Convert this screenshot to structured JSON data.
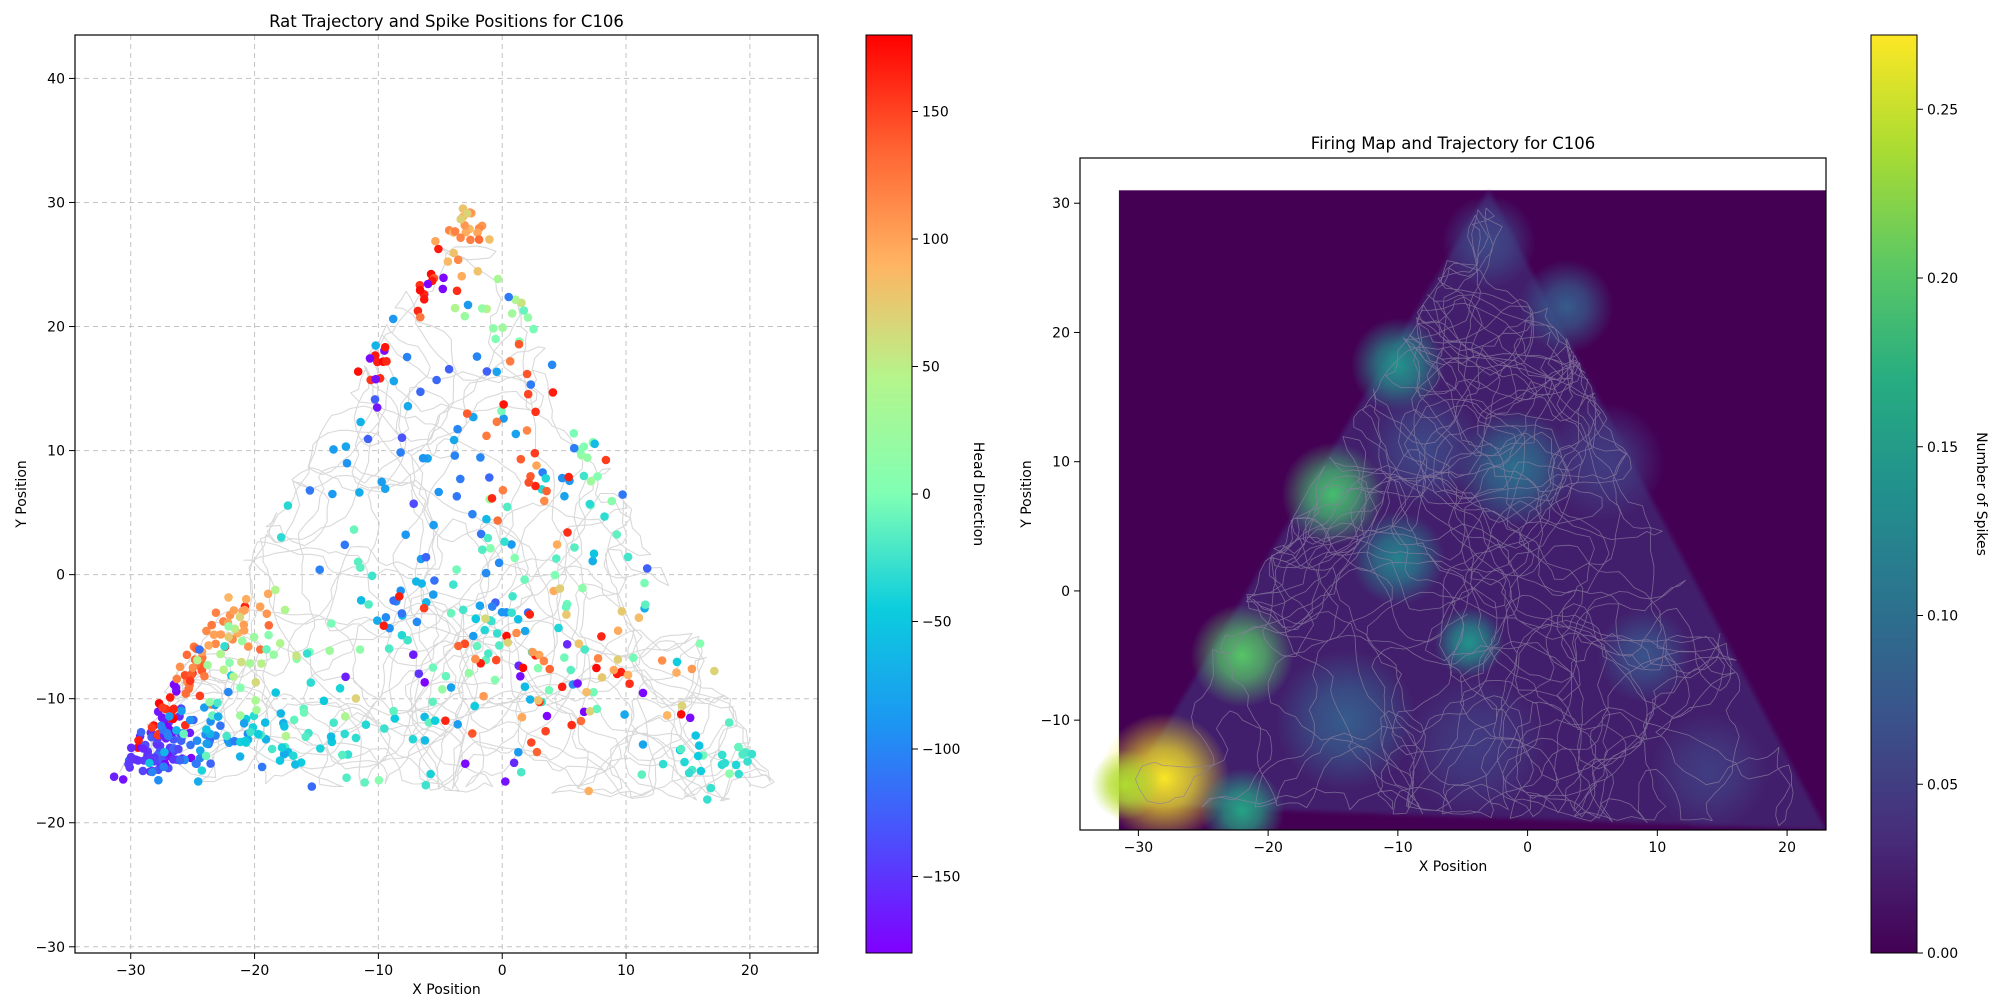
{
  "chart_data": [
    {
      "type": "scatter",
      "title": "Rat Trajectory and Spike Positions for  C106",
      "xlabel": "X Position",
      "ylabel": "Y Position",
      "xlim": [
        -34.5,
        25.5
      ],
      "ylim": [
        -30.5,
        43.5
      ],
      "xticks": [
        -30,
        -20,
        -10,
        0,
        10,
        20
      ],
      "yticks": [
        -30,
        -20,
        -10,
        0,
        10,
        20,
        30,
        40
      ],
      "grid": true,
      "trajectory_color": "#d9d9d9",
      "arena_vertices": [
        [
          -31.5,
          -16.5
        ],
        [
          -3,
          31
        ],
        [
          23,
          -18.5
        ]
      ],
      "spikes_color_by": "Head Direction",
      "spikes_colormap": "rainbow",
      "colorbar": {
        "label": "Head Direction",
        "range": [
          -180,
          180
        ],
        "ticks": [
          -150,
          -100,
          -50,
          0,
          50,
          100,
          150
        ]
      },
      "spike_clusters": [
        {
          "x": -28.5,
          "y": -14.5,
          "spread": [
            1.6,
            1.2
          ],
          "direction": -145,
          "count": 70
        },
        {
          "x": -27.5,
          "y": -11.5,
          "spread": [
            1.0,
            1.3
          ],
          "direction": 175,
          "count": 25
        },
        {
          "x": -25.5,
          "y": -7.5,
          "spread": [
            1.5,
            1.5
          ],
          "direction": 130,
          "count": 25
        },
        {
          "x": -22.5,
          "y": -3.5,
          "spread": [
            1.8,
            1.6
          ],
          "direction": 105,
          "count": 30
        },
        {
          "x": -24.5,
          "y": -13.5,
          "spread": [
            2.5,
            1.5
          ],
          "direction": -95,
          "count": 45
        },
        {
          "x": -20,
          "y": -12,
          "spread": [
            3.0,
            2.0
          ],
          "direction": -45,
          "count": 30
        },
        {
          "x": -20,
          "y": -7,
          "spread": [
            3.5,
            2.5
          ],
          "direction": 30,
          "count": 30
        },
        {
          "x": -3,
          "y": 27.5,
          "spread": [
            1.2,
            2.0
          ],
          "direction": 100,
          "count": 25
        },
        {
          "x": -6,
          "y": 23.5,
          "spread": [
            1.5,
            1.2
          ],
          "direction": 160,
          "count": 15
        },
        {
          "x": 0,
          "y": 21.5,
          "spread": [
            1.5,
            1.8
          ],
          "direction": 20,
          "count": 15
        },
        {
          "x": -10.5,
          "y": 17.5,
          "spread": [
            1.0,
            1.5
          ],
          "direction": 170,
          "count": 12
        },
        {
          "x": 7,
          "y": 10,
          "spread": [
            1.2,
            1.5
          ],
          "direction": 10,
          "count": 10
        },
        {
          "x": 18,
          "y": -15,
          "spread": [
            2.0,
            1.5
          ],
          "direction": -20,
          "count": 25
        },
        {
          "x": -5,
          "y": 6,
          "spread": [
            8.0,
            10.0
          ],
          "direction": -95,
          "count": 90
        },
        {
          "x": 0,
          "y": -4,
          "spread": [
            8.0,
            6.0
          ],
          "direction": -20,
          "count": 90
        },
        {
          "x": 3,
          "y": -8,
          "spread": [
            6.0,
            4.0
          ],
          "direction": 175,
          "count": 40
        },
        {
          "x": 8,
          "y": -8,
          "spread": [
            6.0,
            5.0
          ],
          "direction": 90,
          "count": 35
        },
        {
          "x": 2,
          "y": 10,
          "spread": [
            4.0,
            4.0
          ],
          "direction": 140,
          "count": 25
        },
        {
          "x": -12,
          "y": -14,
          "spread": [
            5.0,
            1.5
          ],
          "direction": -30,
          "count": 30
        }
      ]
    },
    {
      "type": "heatmap",
      "title": "Firing Map and Trajectory for  C106",
      "xlabel": "X Position",
      "ylabel": "Y Position",
      "xlim": [
        -34.5,
        23
      ],
      "ylim": [
        -18.5,
        33.5
      ],
      "heatmap_extent": {
        "x": [
          -31.5,
          23
        ],
        "y": [
          -18.5,
          31
        ]
      },
      "xticks": [
        -30,
        -20,
        -10,
        0,
        10,
        20
      ],
      "yticks": [
        -10,
        0,
        10,
        20,
        30
      ],
      "grid": false,
      "trajectory_color": "#8c7fa0",
      "colormap": "viridis",
      "background_color": "#440154",
      "colorbar": {
        "label": "Number of Spikes",
        "range": [
          0,
          0.272
        ],
        "ticks": [
          0.0,
          0.05,
          0.1,
          0.15,
          0.2,
          0.25
        ],
        "tick_labels": [
          "0.00",
          "0.05",
          "0.10",
          "0.15",
          "0.20",
          "0.25"
        ]
      },
      "hotspots": [
        {
          "x": -28,
          "y": -14.5,
          "value": 0.27,
          "spread": 2.8
        },
        {
          "x": -31,
          "y": -15,
          "value": 0.24,
          "spread": 1.5
        },
        {
          "x": -22,
          "y": -5,
          "value": 0.2,
          "spread": 2.2
        },
        {
          "x": -15,
          "y": 7.5,
          "value": 0.19,
          "spread": 2.2
        },
        {
          "x": -22,
          "y": -17,
          "value": 0.16,
          "spread": 1.8
        },
        {
          "x": -10,
          "y": 17.5,
          "value": 0.14,
          "spread": 2.0
        },
        {
          "x": -4.5,
          "y": -4,
          "value": 0.14,
          "spread": 1.5
        },
        {
          "x": -10,
          "y": 2.5,
          "value": 0.12,
          "spread": 2.0
        },
        {
          "x": -1,
          "y": 9.5,
          "value": 0.1,
          "spread": 2.5
        },
        {
          "x": 9,
          "y": -5,
          "value": 0.07,
          "spread": 2.0
        },
        {
          "x": 3,
          "y": 22,
          "value": 0.08,
          "spread": 2.0
        },
        {
          "x": -3,
          "y": 27,
          "value": 0.06,
          "spread": 2.0
        },
        {
          "x": -8,
          "y": 11,
          "value": 0.06,
          "spread": 2.5
        },
        {
          "x": 6,
          "y": 10,
          "value": 0.05,
          "spread": 2.5
        },
        {
          "x": 14,
          "y": -14,
          "value": 0.05,
          "spread": 2.5
        },
        {
          "x": -14,
          "y": -10,
          "value": 0.08,
          "spread": 3.0
        },
        {
          "x": -4,
          "y": -12,
          "value": 0.05,
          "spread": 3.0
        }
      ]
    }
  ]
}
